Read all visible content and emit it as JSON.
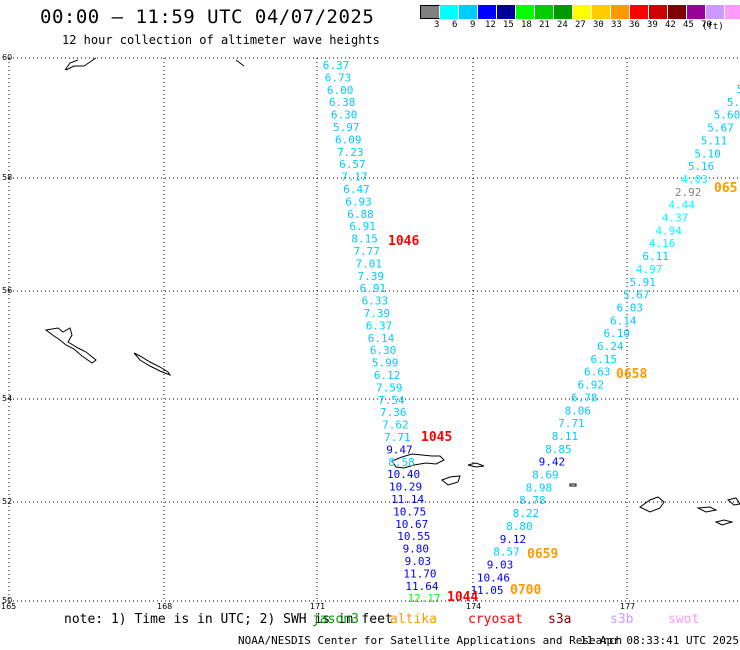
{
  "title": "00:00 — 11:59 UTC 04/07/2025",
  "subtitle": "12 hour collection of altimeter wave heights",
  "legend": {
    "colors": [
      "#808080",
      "#00ffff",
      "#00ccff",
      "#0000ff",
      "#000099",
      "#00ff00",
      "#00cc00",
      "#009900",
      "#ffff00",
      "#ffcc00",
      "#ff9900",
      "#ff0000",
      "#cc0000",
      "#800000",
      "#990099",
      "#cc99ff",
      "#ff99ff",
      "#000000"
    ],
    "ticks": [
      "3",
      "6",
      "9",
      "12",
      "15",
      "18",
      "21",
      "24",
      "27",
      "30",
      "33",
      "36",
      "39",
      "42",
      "45",
      "70"
    ],
    "unit": "(ft)"
  },
  "map": {
    "lon_ticks": [
      "165",
      "168",
      "171",
      "174",
      "177"
    ],
    "lat_ticks": [
      "60",
      "58",
      "56",
      "54",
      "52",
      "50"
    ],
    "track_west": [
      {
        "v": "6.37",
        "c": "#00ccff"
      },
      {
        "v": "6.73",
        "c": "#00ccff"
      },
      {
        "v": "6.00",
        "c": "#00ccff"
      },
      {
        "v": "6.38",
        "c": "#00ccff"
      },
      {
        "v": "6.30",
        "c": "#00ccff"
      },
      {
        "v": "5.97",
        "c": "#00ccff"
      },
      {
        "v": "6.09",
        "c": "#00ccff"
      },
      {
        "v": "7.23",
        "c": "#00ccff"
      },
      {
        "v": "6.57",
        "c": "#00ccff"
      },
      {
        "v": "7.17",
        "c": "#00ccff"
      },
      {
        "v": "6.47",
        "c": "#00ccff"
      },
      {
        "v": "6.93",
        "c": "#00ccff"
      },
      {
        "v": "6.88",
        "c": "#00ccff"
      },
      {
        "v": "6.91",
        "c": "#00ccff"
      },
      {
        "v": "8.15",
        "c": "#00ccff"
      },
      {
        "v": "7.77",
        "c": "#00ccff"
      },
      {
        "v": "7.01",
        "c": "#00ccff"
      },
      {
        "v": "7.39",
        "c": "#00ccff"
      },
      {
        "v": "6.91",
        "c": "#00ccff"
      },
      {
        "v": "6.33",
        "c": "#00ccff"
      },
      {
        "v": "7.39",
        "c": "#00ccff"
      },
      {
        "v": "6.37",
        "c": "#00ccff"
      },
      {
        "v": "6.14",
        "c": "#00ccff"
      },
      {
        "v": "6.30",
        "c": "#00ccff"
      },
      {
        "v": "5.99",
        "c": "#00ccff"
      },
      {
        "v": "6.12",
        "c": "#00ccff"
      },
      {
        "v": "7.59",
        "c": "#00ccff"
      },
      {
        "v": "7.54",
        "c": "#00ccff"
      },
      {
        "v": "7.36",
        "c": "#00ccff"
      },
      {
        "v": "7.62",
        "c": "#00ccff"
      },
      {
        "v": "7.71",
        "c": "#00ccff"
      },
      {
        "v": "9.47",
        "c": "#0000ff"
      },
      {
        "v": "8.58",
        "c": "#00ccff"
      },
      {
        "v": "10.40",
        "c": "#0000ff"
      },
      {
        "v": "10.29",
        "c": "#0000ff"
      },
      {
        "v": "11.14",
        "c": "#0000ff"
      },
      {
        "v": "10.75",
        "c": "#0000ff"
      },
      {
        "v": "10.67",
        "c": "#0000ff"
      },
      {
        "v": "10.55",
        "c": "#0000ff"
      },
      {
        "v": "9.80",
        "c": "#0000ff"
      },
      {
        "v": "9.03",
        "c": "#0000ff"
      },
      {
        "v": "11.70",
        "c": "#0000ff"
      },
      {
        "v": "11.64",
        "c": "#0000ff"
      },
      {
        "v": "12.17",
        "c": "#00ff00"
      }
    ],
    "track_east": [
      {
        "v": "5",
        "c": "#00ccff"
      },
      {
        "v": "5.",
        "c": "#00ccff"
      },
      {
        "v": "5.60",
        "c": "#00ccff"
      },
      {
        "v": "5.67",
        "c": "#00ccff"
      },
      {
        "v": "5.11",
        "c": "#00ccff"
      },
      {
        "v": "5.10",
        "c": "#00ccff"
      },
      {
        "v": "5.16",
        "c": "#00ccff"
      },
      {
        "v": "4.03",
        "c": "#00ffff"
      },
      {
        "v": "2.92",
        "c": "#808080"
      },
      {
        "v": "4.44",
        "c": "#00ffff"
      },
      {
        "v": "4.37",
        "c": "#00ffff"
      },
      {
        "v": "4.94",
        "c": "#00ffff"
      },
      {
        "v": "4.16",
        "c": "#00ffff"
      },
      {
        "v": "6.11",
        "c": "#00ccff"
      },
      {
        "v": "4.97",
        "c": "#00ffff"
      },
      {
        "v": "5.91",
        "c": "#00ccff"
      },
      {
        "v": "5.67",
        "c": "#00ccff"
      },
      {
        "v": "6.03",
        "c": "#00ccff"
      },
      {
        "v": "6.14",
        "c": "#00ccff"
      },
      {
        "v": "6.10",
        "c": "#00ccff"
      },
      {
        "v": "6.24",
        "c": "#00ccff"
      },
      {
        "v": "6.15",
        "c": "#00ccff"
      },
      {
        "v": "6.63",
        "c": "#00ccff"
      },
      {
        "v": "6.92",
        "c": "#00ccff"
      },
      {
        "v": "6.78",
        "c": "#00ccff"
      },
      {
        "v": "8.06",
        "c": "#00ccff"
      },
      {
        "v": "7.71",
        "c": "#00ccff"
      },
      {
        "v": "8.11",
        "c": "#00ccff"
      },
      {
        "v": "8.85",
        "c": "#00ccff"
      },
      {
        "v": "9.42",
        "c": "#0000ff"
      },
      {
        "v": "8.69",
        "c": "#00ccff"
      },
      {
        "v": "8.98",
        "c": "#00ccff"
      },
      {
        "v": "8.78",
        "c": "#00ccff"
      },
      {
        "v": "8.22",
        "c": "#00ccff"
      },
      {
        "v": "8.80",
        "c": "#00ccff"
      },
      {
        "v": "9.12",
        "c": "#0000ff"
      },
      {
        "v": "8.57",
        "c": "#00ccff"
      },
      {
        "v": "9.03",
        "c": "#0000ff"
      },
      {
        "v": "10.46",
        "c": "#0000ff"
      },
      {
        "v": "11.05",
        "c": "#0000ff"
      }
    ],
    "pass_labels": [
      {
        "t": "1046",
        "c": "#ff0000"
      },
      {
        "t": "1045",
        "c": "#ff0000"
      },
      {
        "t": "1044",
        "c": "#ff0000"
      },
      {
        "t": "065",
        "c": "#ff9900"
      },
      {
        "t": "0658",
        "c": "#ff9900"
      },
      {
        "t": "0659",
        "c": "#ff9900"
      },
      {
        "t": "0700",
        "c": "#ff9900"
      }
    ]
  },
  "footer": {
    "note": "note: 1) Time is in UTC; 2) SWH is in feet",
    "satellites": [
      {
        "name": "jason3",
        "c": "#009900"
      },
      {
        "name": "altika",
        "c": "#ff9900"
      },
      {
        "name": "cryosat",
        "c": "#ff0000"
      },
      {
        "name": "s3a",
        "c": "#800000"
      },
      {
        "name": "s3b",
        "c": "#cc99ff"
      },
      {
        "name": "swot",
        "c": "#ff99ff"
      }
    ],
    "credit": "NOAA/NESDIS Center for Satellite Applications and Research",
    "timestamp": "11 Apr 08:33:41 UTC 2025"
  }
}
